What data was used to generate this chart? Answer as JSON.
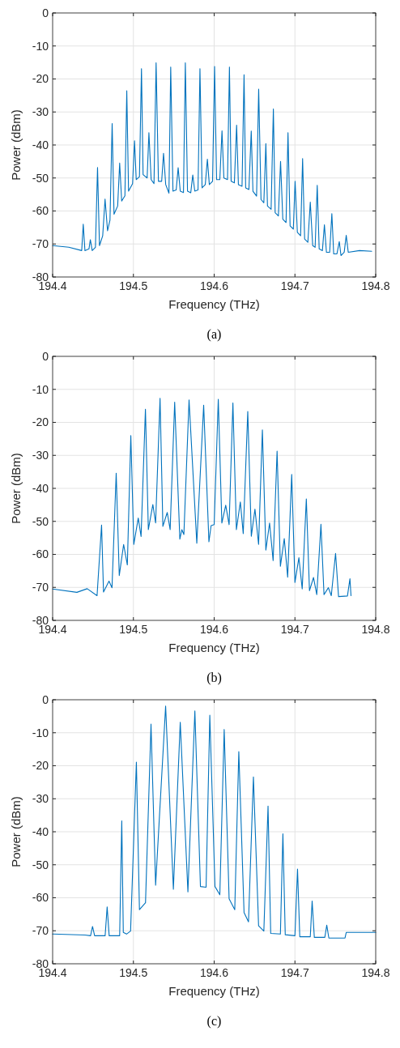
{
  "chart_data": [
    {
      "type": "line",
      "xlabel": "Frequency (THz)",
      "ylabel": "Power (dBm)",
      "annotations": [
        "(a)"
      ],
      "color": "#0072bd",
      "grid": true,
      "xlim": [
        194.4,
        194.8
      ],
      "ylim": [
        -80,
        0
      ],
      "xticks": [
        194.4,
        194.5,
        194.6,
        194.7,
        194.8
      ],
      "yticks": [
        -80,
        -70,
        -60,
        -50,
        -40,
        -30,
        -20,
        -10,
        0
      ],
      "x": [
        194.4,
        194.42,
        194.436,
        194.4379,
        194.44,
        194.445,
        194.4467,
        194.449,
        194.453,
        194.4556,
        194.458,
        194.462,
        194.4649,
        194.468,
        194.471,
        194.4737,
        194.476,
        194.4805,
        194.483,
        194.4855,
        194.4895,
        194.4918,
        194.494,
        194.499,
        194.5014,
        194.5035,
        194.5075,
        194.51,
        194.512,
        194.517,
        194.5192,
        194.522,
        194.5255,
        194.5281,
        194.531,
        194.535,
        194.5373,
        194.54,
        194.544,
        194.5462,
        194.549,
        194.553,
        194.5554,
        194.558,
        194.562,
        194.5643,
        194.567,
        194.571,
        194.5735,
        194.576,
        194.58,
        194.5824,
        194.585,
        194.589,
        194.5916,
        194.594,
        194.598,
        194.6005,
        194.603,
        194.607,
        194.6097,
        194.612,
        194.6165,
        194.6189,
        194.621,
        194.625,
        194.6278,
        194.63,
        194.6345,
        194.637,
        194.639,
        194.643,
        194.6459,
        194.648,
        194.6525,
        194.6551,
        194.658,
        194.6615,
        194.664,
        194.666,
        194.6705,
        194.6733,
        194.6755,
        194.6795,
        194.6822,
        194.685,
        194.689,
        194.6914,
        194.694,
        194.698,
        194.7002,
        194.703,
        194.707,
        194.7095,
        194.712,
        194.716,
        194.719,
        194.722,
        194.725,
        194.7276,
        194.73,
        194.734,
        194.7365,
        194.739,
        194.743,
        194.7457,
        194.748,
        194.752,
        194.7549,
        194.757,
        194.761,
        194.7635,
        194.766,
        194.78,
        194.795
      ],
      "values": [
        -70.5,
        -71,
        -72,
        -64,
        -72,
        -71.5,
        -68.7,
        -72,
        -71,
        -46.8,
        -70.5,
        -67.5,
        -56.4,
        -66,
        -62.8,
        -33.5,
        -61,
        -58.5,
        -45.5,
        -57,
        -55.4,
        -23.6,
        -54,
        -51.7,
        -38.7,
        -50.5,
        -49.6,
        -16.9,
        -49,
        -50,
        -36.3,
        -50.5,
        -51.7,
        -15.1,
        -51,
        -51,
        -42.5,
        -52,
        -54.6,
        -16.4,
        -54,
        -53.6,
        -46.9,
        -54,
        -54.4,
        -15.1,
        -54,
        -54.5,
        -49.1,
        -54,
        -53.6,
        -16.9,
        -53,
        -52,
        -44.3,
        -52,
        -51,
        -16.2,
        -50.5,
        -50.5,
        -35.7,
        -50,
        -50.5,
        -16.4,
        -51,
        -51.5,
        -34,
        -52,
        -52.5,
        -18.7,
        -53,
        -53.5,
        -35.8,
        -54,
        -55.5,
        -23.1,
        -56.5,
        -57.5,
        -39.6,
        -58.5,
        -59.5,
        -29.1,
        -60.5,
        -61.5,
        -45,
        -62.5,
        -63.5,
        -36.3,
        -64.5,
        -65.5,
        -51,
        -66.5,
        -67.5,
        -44.1,
        -68.5,
        -69.5,
        -57.3,
        -70.5,
        -71,
        -52.2,
        -71.5,
        -72,
        -64.2,
        -72.5,
        -72.5,
        -60.8,
        -73,
        -73,
        -69.3,
        -73.5,
        -72.5,
        -67.4,
        -72.5,
        -72,
        -72.2
      ]
    },
    {
      "type": "line",
      "xlabel": "Frequency (THz)",
      "ylabel": "Power (dBm)",
      "annotations": [
        "(b)"
      ],
      "color": "#0072bd",
      "grid": true,
      "xlim": [
        194.4,
        194.8
      ],
      "ylim": [
        -80,
        0
      ],
      "xticks": [
        194.4,
        194.5,
        194.6,
        194.7,
        194.8
      ],
      "yticks": [
        -80,
        -70,
        -60,
        -50,
        -40,
        -30,
        -20,
        -10,
        0
      ],
      "x": [
        194.4,
        194.43,
        194.4428,
        194.455,
        194.4606,
        194.463,
        194.4698,
        194.4735,
        194.4787,
        194.4825,
        194.4879,
        194.4925,
        194.4968,
        194.5005,
        194.506,
        194.5095,
        194.5149,
        194.5185,
        194.5241,
        194.5275,
        194.533,
        194.5365,
        194.5419,
        194.5455,
        194.5511,
        194.5575,
        194.56,
        194.5625,
        194.5689,
        194.5785,
        194.587,
        194.5935,
        194.5962,
        194.6,
        194.6051,
        194.6095,
        194.6143,
        194.6185,
        194.6232,
        194.6275,
        194.6324,
        194.636,
        194.6416,
        194.646,
        194.6505,
        194.655,
        194.6597,
        194.664,
        194.6686,
        194.673,
        194.6779,
        194.682,
        194.6868,
        194.691,
        194.696,
        194.7,
        194.7049,
        194.709,
        194.7141,
        194.718,
        194.723,
        194.727,
        194.7322,
        194.736,
        194.7414,
        194.745,
        194.7503,
        194.754,
        194.765,
        194.7681,
        194.7694
      ],
      "values": [
        -70.5,
        -71.5,
        -70.4,
        -72.5,
        -51.1,
        -71.4,
        -68.1,
        -70.1,
        -35.4,
        -66.4,
        -57,
        -63.2,
        -24,
        -57,
        -49,
        -54.6,
        -16,
        -52.5,
        -44.9,
        -50.5,
        -12.7,
        -51.5,
        -47.3,
        -52.5,
        -13.9,
        -55.4,
        -52.5,
        -54,
        -13.2,
        -56.6,
        -14.8,
        -56.2,
        -51.3,
        -51,
        -13,
        -50.5,
        -45.1,
        -51,
        -14.1,
        -52.5,
        -44.1,
        -53.7,
        -16.7,
        -54.5,
        -46.3,
        -57,
        -22.3,
        -58.7,
        -50.5,
        -61.9,
        -28.7,
        -63.6,
        -55.2,
        -66.9,
        -35.8,
        -68.5,
        -61,
        -70.5,
        -43.2,
        -71,
        -67,
        -72.2,
        -50.9,
        -72.2,
        -70.1,
        -72.5,
        -59.7,
        -72.8,
        -72.6,
        -67.4,
        -72.5
      ]
    },
    {
      "type": "line",
      "xlabel": "Frequency (THz)",
      "ylabel": "Power (dBm)",
      "annotations": [
        "(c)"
      ],
      "color": "#0072bd",
      "grid": true,
      "xlim": [
        194.4,
        194.8
      ],
      "ylim": [
        -80,
        0
      ],
      "xticks": [
        194.4,
        194.5,
        194.6,
        194.7,
        194.8
      ],
      "yticks": [
        -80,
        -70,
        -60,
        -50,
        -40,
        -30,
        -20,
        -10,
        0
      ],
      "x": [
        194.4,
        194.44,
        194.447,
        194.4494,
        194.452,
        194.465,
        194.4675,
        194.47,
        194.483,
        194.4856,
        194.4875,
        194.4915,
        194.4965,
        194.5037,
        194.5075,
        194.515,
        194.5218,
        194.5275,
        194.5399,
        194.5495,
        194.558,
        194.5675,
        194.5761,
        194.583,
        194.59,
        194.5946,
        194.601,
        194.607,
        194.6124,
        194.6185,
        194.6255,
        194.6305,
        194.637,
        194.6425,
        194.6486,
        194.655,
        194.6615,
        194.6667,
        194.67,
        194.682,
        194.6851,
        194.688,
        194.7,
        194.7032,
        194.706,
        194.719,
        194.7213,
        194.724,
        194.737,
        194.7394,
        194.742,
        194.762,
        194.7635,
        194.8
      ],
      "values": [
        -71,
        -71.3,
        -71.5,
        -68.7,
        -71.5,
        -71.5,
        -62.8,
        -71.5,
        -71.5,
        -36.7,
        -70.5,
        -71,
        -70.1,
        -18.9,
        -63.6,
        -61.5,
        -7.4,
        -56.2,
        -1.9,
        -57.4,
        -6.8,
        -58.2,
        -3.4,
        -56.6,
        -56.8,
        -4.7,
        -56.6,
        -59.1,
        -9,
        -60.3,
        -63.6,
        -15.7,
        -64.5,
        -67.3,
        -23.4,
        -68.5,
        -70.1,
        -32.2,
        -70.8,
        -71,
        -40.6,
        -71.2,
        -71.5,
        -51.3,
        -71.8,
        -71.8,
        -61,
        -72,
        -72,
        -68.3,
        -72.2,
        -72.2,
        -70.5,
        -70.5
      ]
    }
  ]
}
